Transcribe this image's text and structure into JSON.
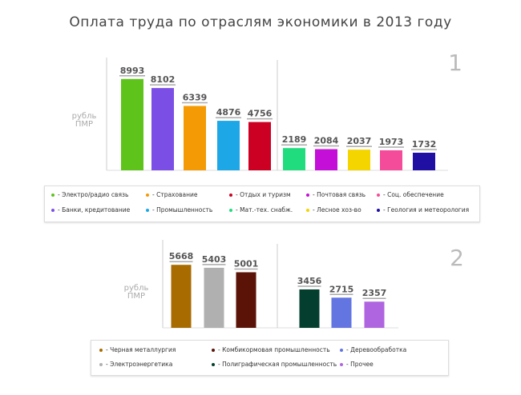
{
  "chart_data": [
    {
      "type": "bar",
      "title": "Оплата труда по отраслям экономики в 2013 году",
      "panel": "1",
      "ylabel": "рубль ПМР",
      "categories": [
        "Электро/радио связь",
        "Банки, кредитование",
        "Страхование",
        "Промышленность",
        "Отдых и туризм",
        "Мат.-тех. снабж.",
        "Почтовая связь",
        "Лесное хоз-во",
        "Соц. обеспечение",
        "Геология и метеорология"
      ],
      "values": [
        8993,
        8102,
        6339,
        4876,
        4756,
        2189,
        2084,
        2037,
        1973,
        1732
      ],
      "colors": [
        "#5ec41b",
        "#7b4fe6",
        "#f39a05",
        "#1ea7e6",
        "#cc0022",
        "#21dc7f",
        "#c40fd8",
        "#f4d500",
        "#f44c9a",
        "#1f0fa3"
      ],
      "legend": [
        "- Электро/радио связь",
        "- Страхование",
        "- Отдых и туризм",
        "- Почтовая связь",
        "- Соц. обеспечение",
        "- Банки, кредитование",
        "- Промышленность",
        "- Мат.-тех. снабж.",
        "- Лесное хоз-во",
        "- Геология и метеорология"
      ],
      "legend_order": [
        0,
        2,
        4,
        6,
        8,
        1,
        3,
        5,
        7,
        9
      ]
    },
    {
      "type": "bar",
      "panel": "2",
      "ylabel": "рубль ПМР",
      "categories": [
        "Черная металлургия",
        "Электроэнергетика",
        "Комбикормовая промышленность",
        "Полиграфическая промышленность",
        "Деревообработка",
        "Прочее"
      ],
      "values": [
        5668,
        5403,
        5001,
        3456,
        2715,
        2357
      ],
      "colors": [
        "#a86b00",
        "#b0b0b0",
        "#5a1306",
        "#033e2e",
        "#6275e0",
        "#b065e0"
      ],
      "legend": [
        "- Черная металлургия",
        "- Комбикормовая промышленность",
        "- Деревообработка",
        "- Электроэнергетика",
        "- Полиграфическая промышленность",
        "- Прочее"
      ],
      "legend_order": [
        0,
        2,
        4,
        1,
        3,
        5
      ]
    }
  ]
}
